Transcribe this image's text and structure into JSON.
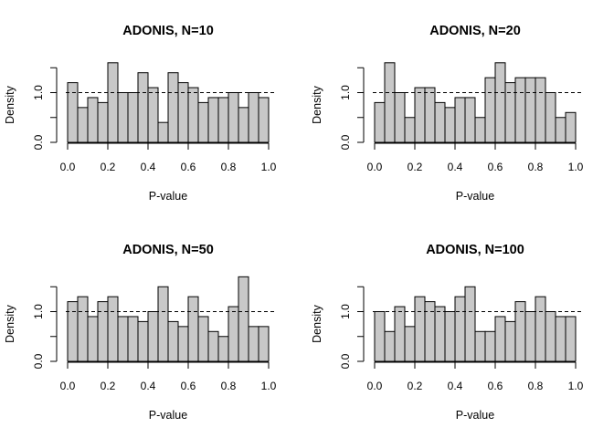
{
  "chart_data": [
    {
      "type": "bar",
      "title": "ADONIS, N=10",
      "xlabel": "P-value",
      "ylabel": "Density",
      "bin_width": 0.05,
      "bin_starts": [
        0,
        0.05,
        0.1,
        0.15,
        0.2,
        0.25,
        0.3,
        0.35,
        0.4,
        0.45,
        0.5,
        0.55,
        0.6,
        0.65,
        0.7,
        0.75,
        0.8,
        0.85,
        0.9,
        0.95
      ],
      "values": [
        1.2,
        0.7,
        0.9,
        0.8,
        1.6,
        1.0,
        1.0,
        1.4,
        1.1,
        0.4,
        1.4,
        1.2,
        1.1,
        0.8,
        0.9,
        0.9,
        1.0,
        0.7,
        1.0,
        0.9
      ],
      "reference_line": 1.0,
      "xlim": [
        0,
        1
      ],
      "ylim": [
        0,
        1.5
      ],
      "xticks": [
        "0.0",
        "0.2",
        "0.4",
        "0.6",
        "0.8",
        "1.0"
      ],
      "yticks": [
        "0.0",
        "1.0"
      ]
    },
    {
      "type": "bar",
      "title": "ADONIS, N=20",
      "xlabel": "P-value",
      "ylabel": "Density",
      "bin_width": 0.05,
      "bin_starts": [
        0,
        0.05,
        0.1,
        0.15,
        0.2,
        0.25,
        0.3,
        0.35,
        0.4,
        0.45,
        0.5,
        0.55,
        0.6,
        0.65,
        0.7,
        0.75,
        0.8,
        0.85,
        0.9,
        0.95
      ],
      "values": [
        0.8,
        1.6,
        1.0,
        0.5,
        1.1,
        1.1,
        0.8,
        0.7,
        0.9,
        0.9,
        0.5,
        1.3,
        1.6,
        1.2,
        1.3,
        1.3,
        1.3,
        1.0,
        0.5,
        0.6
      ],
      "reference_line": 1.0,
      "xlim": [
        0,
        1
      ],
      "ylim": [
        0,
        1.5
      ],
      "xticks": [
        "0.0",
        "0.2",
        "0.4",
        "0.6",
        "0.8",
        "1.0"
      ],
      "yticks": [
        "0.0",
        "1.0"
      ]
    },
    {
      "type": "bar",
      "title": "ADONIS, N=50",
      "xlabel": "P-value",
      "ylabel": "Density",
      "bin_width": 0.05,
      "bin_starts": [
        0,
        0.05,
        0.1,
        0.15,
        0.2,
        0.25,
        0.3,
        0.35,
        0.4,
        0.45,
        0.5,
        0.55,
        0.6,
        0.65,
        0.7,
        0.75,
        0.8,
        0.85,
        0.9,
        0.95
      ],
      "values": [
        1.2,
        1.3,
        0.9,
        1.2,
        1.3,
        0.9,
        0.9,
        0.8,
        1.0,
        1.5,
        0.8,
        0.7,
        1.3,
        0.9,
        0.6,
        0.5,
        1.1,
        1.7,
        0.7,
        0.7
      ],
      "reference_line": 1.0,
      "xlim": [
        0,
        1
      ],
      "ylim": [
        0,
        1.5
      ],
      "xticks": [
        "0.0",
        "0.2",
        "0.4",
        "0.6",
        "0.8",
        "1.0"
      ],
      "yticks": [
        "0.0",
        "1.0"
      ]
    },
    {
      "type": "bar",
      "title": "ADONIS, N=100",
      "xlabel": "P-value",
      "ylabel": "Density",
      "bin_width": 0.05,
      "bin_starts": [
        0,
        0.05,
        0.1,
        0.15,
        0.2,
        0.25,
        0.3,
        0.35,
        0.4,
        0.45,
        0.5,
        0.55,
        0.6,
        0.65,
        0.7,
        0.75,
        0.8,
        0.85,
        0.9,
        0.95
      ],
      "values": [
        1.0,
        0.6,
        1.1,
        0.7,
        1.3,
        1.2,
        1.1,
        1.0,
        1.3,
        1.5,
        0.6,
        0.6,
        0.9,
        0.8,
        1.2,
        1.0,
        1.3,
        1.0,
        0.9,
        0.9
      ],
      "reference_line": 1.0,
      "xlim": [
        0,
        1
      ],
      "ylim": [
        0,
        1.5
      ],
      "xticks": [
        "0.0",
        "0.2",
        "0.4",
        "0.6",
        "0.8",
        "1.0"
      ],
      "yticks": [
        "0.0",
        "1.0"
      ]
    }
  ],
  "style": {
    "bar_fill": "#c8c8c8",
    "stroke": "#000000",
    "background": "#ffffff"
  }
}
